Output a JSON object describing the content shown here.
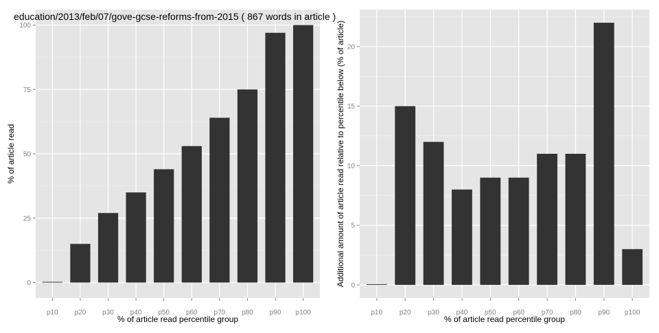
{
  "title": "education/2013/feb/07/gove-gcse-reforms-from-2015 ( 867 words in article )",
  "chart_data": [
    {
      "type": "bar",
      "title": "education/2013/feb/07/gove-gcse-reforms-from-2015 ( 867 words in article )",
      "xlabel": "% of article read percentile group",
      "ylabel": "% of article read",
      "categories": [
        "p10",
        "p20",
        "p30",
        "p40",
        "p50",
        "p60",
        "p70",
        "p80",
        "p90",
        "p100"
      ],
      "values": [
        0,
        15,
        27,
        35,
        44,
        53,
        64,
        75,
        97,
        100
      ],
      "yticks": [
        0,
        25,
        50,
        75,
        100
      ],
      "ylim": [
        -6,
        106
      ],
      "grid": true,
      "bar_color": "#333333",
      "panel_color": "#e5e5e5"
    },
    {
      "type": "bar",
      "title": "",
      "xlabel": "% of article read percentile group",
      "ylabel": "Additional amount of article read relative to percentile below (% of article)",
      "categories": [
        "p10",
        "p20",
        "p30",
        "p40",
        "p50",
        "p60",
        "p70",
        "p80",
        "p90",
        "p100"
      ],
      "values": [
        0,
        15,
        12,
        8,
        9,
        9,
        11,
        11,
        22,
        3
      ],
      "yticks": [
        0,
        5,
        10,
        15,
        20
      ],
      "ylim": [
        -1.1,
        23.1
      ],
      "grid": true,
      "bar_color": "#333333",
      "panel_color": "#e5e5e5"
    }
  ]
}
